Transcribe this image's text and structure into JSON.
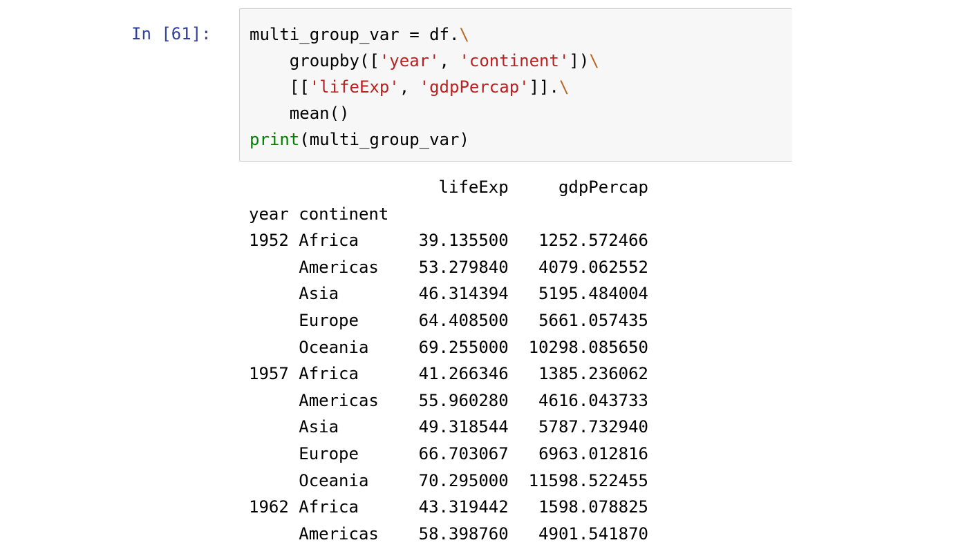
{
  "cell": {
    "prompt": "In [61]:",
    "code_lines": [
      [
        {
          "t": "multi_group_var = df.",
          "c": ""
        },
        {
          "t": "\\",
          "c": "esc"
        }
      ],
      [
        {
          "t": "    groupby([",
          "c": ""
        },
        {
          "t": "'year'",
          "c": "str"
        },
        {
          "t": ", ",
          "c": ""
        },
        {
          "t": "'continent'",
          "c": "str"
        },
        {
          "t": "])",
          "c": ""
        },
        {
          "t": "\\",
          "c": "esc"
        }
      ],
      [
        {
          "t": "    [[",
          "c": ""
        },
        {
          "t": "'lifeExp'",
          "c": "str"
        },
        {
          "t": ", ",
          "c": ""
        },
        {
          "t": "'gdpPercap'",
          "c": "str"
        },
        {
          "t": "]].",
          "c": ""
        },
        {
          "t": "\\",
          "c": "esc"
        }
      ],
      [
        {
          "t": "    mean()",
          "c": ""
        }
      ],
      [
        {
          "t": "print",
          "c": "builtin"
        },
        {
          "t": "(multi_group_var)",
          "c": ""
        }
      ]
    ]
  },
  "output": {
    "header": [
      "",
      "",
      "lifeExp",
      "gdpPercap"
    ],
    "index_names": [
      "year",
      "continent"
    ],
    "rows": [
      [
        "1952",
        "Africa",
        "39.135500",
        "1252.572466"
      ],
      [
        "",
        "Americas",
        "53.279840",
        "4079.062552"
      ],
      [
        "",
        "Asia",
        "46.314394",
        "5195.484004"
      ],
      [
        "",
        "Europe",
        "64.408500",
        "5661.057435"
      ],
      [
        "",
        "Oceania",
        "69.255000",
        "10298.085650"
      ],
      [
        "1957",
        "Africa",
        "41.266346",
        "1385.236062"
      ],
      [
        "",
        "Americas",
        "55.960280",
        "4616.043733"
      ],
      [
        "",
        "Asia",
        "49.318544",
        "5787.732940"
      ],
      [
        "",
        "Europe",
        "66.703067",
        "6963.012816"
      ],
      [
        "",
        "Oceania",
        "70.295000",
        "11598.522455"
      ],
      [
        "1962",
        "Africa",
        "43.319442",
        "1598.078825"
      ],
      [
        "",
        "Americas",
        "58.398760",
        "4901.541870"
      ]
    ]
  }
}
